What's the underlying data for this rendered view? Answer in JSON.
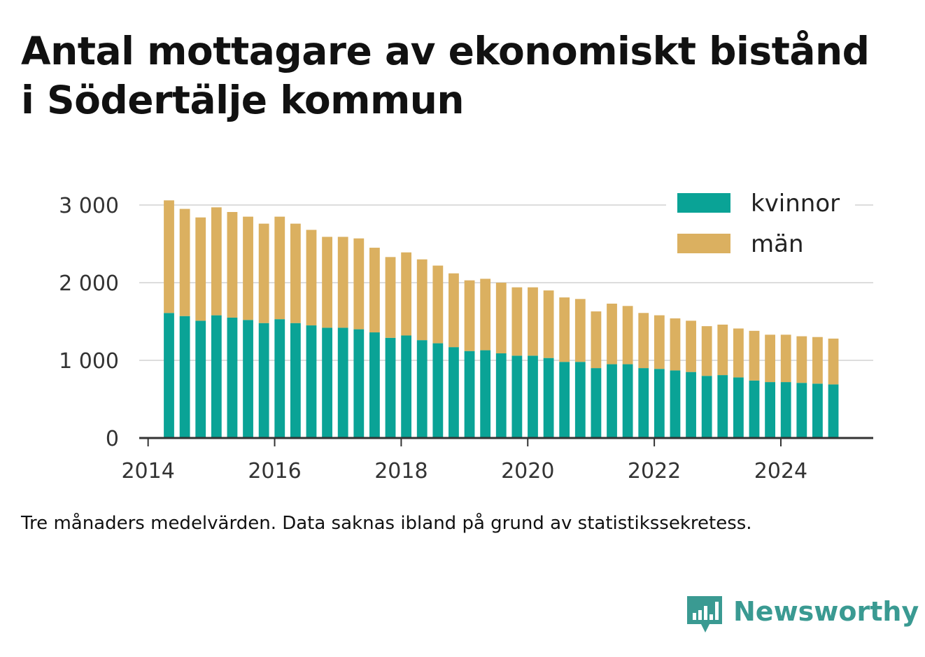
{
  "title": {
    "line1": "Antal mottagare av ekonomiskt bistånd",
    "line2": "i Södertälje kommun"
  },
  "caption": "Tre månaders medelvärden. Data saknas ibland på grund av statistikssekretess.",
  "brand": {
    "name": "Newsworthy",
    "icon": "newsworthy-logo-icon",
    "color": "#3a9a92"
  },
  "colors": {
    "kvinnor": "#0aa396",
    "man": "#dbb060",
    "grid": "#dddddd",
    "axis": "#333333"
  },
  "chart_data": {
    "type": "bar",
    "stacked": true,
    "title": "Antal mottagare av ekonomiskt bistånd i Södertälje kommun",
    "ylim": [
      0,
      3000
    ],
    "yticks": [
      0,
      1000,
      2000,
      3000
    ],
    "ytick_labels": [
      "0",
      "1 000",
      "2 000",
      "3 000"
    ],
    "xticks": [
      2014,
      2016,
      2018,
      2020,
      2022,
      2024
    ],
    "xtick_labels": [
      "2014",
      "2016",
      "2018",
      "2020",
      "2022",
      "2024"
    ],
    "xlim": [
      2013.86,
      2025.46
    ],
    "grid": true,
    "legend_position": "top-right",
    "x": [
      2014.33,
      2014.58,
      2014.83,
      2015.08,
      2015.33,
      2015.58,
      2015.83,
      2016.08,
      2016.33,
      2016.58,
      2016.83,
      2017.08,
      2017.33,
      2017.58,
      2017.83,
      2018.08,
      2018.33,
      2018.58,
      2018.83,
      2019.08,
      2019.33,
      2019.58,
      2019.83,
      2020.08,
      2020.33,
      2020.58,
      2020.83,
      2021.08,
      2021.33,
      2021.58,
      2021.83,
      2022.08,
      2022.33,
      2022.58,
      2022.83,
      2023.08,
      2023.33,
      2023.58,
      2023.83,
      2024.08,
      2024.33,
      2024.58,
      2024.83
    ],
    "series": [
      {
        "name": "kvinnor",
        "color": "#0aa396",
        "values": [
          1610,
          1570,
          1510,
          1580,
          1550,
          1520,
          1480,
          1530,
          1480,
          1450,
          1420,
          1420,
          1400,
          1360,
          1290,
          1320,
          1260,
          1220,
          1170,
          1120,
          1130,
          1090,
          1060,
          1060,
          1030,
          980,
          980,
          900,
          950,
          950,
          900,
          890,
          870,
          850,
          800,
          810,
          780,
          740,
          720,
          720,
          710,
          700,
          690
        ]
      },
      {
        "name": "män",
        "color": "#dbb060",
        "values": [
          1450,
          1380,
          1330,
          1390,
          1360,
          1330,
          1280,
          1320,
          1280,
          1230,
          1170,
          1170,
          1170,
          1090,
          1040,
          1070,
          1040,
          1000,
          950,
          910,
          920,
          910,
          880,
          880,
          870,
          830,
          810,
          730,
          780,
          750,
          710,
          690,
          670,
          660,
          640,
          650,
          630,
          640,
          610,
          610,
          600,
          600,
          590
        ]
      }
    ]
  }
}
